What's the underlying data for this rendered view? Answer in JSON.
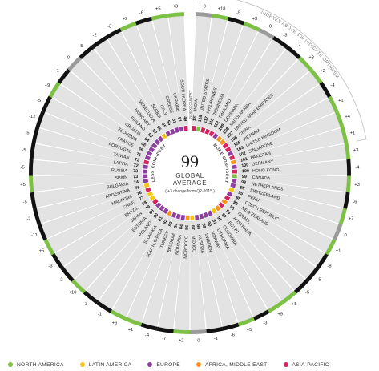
{
  "center": {
    "value": "99",
    "line1": "GLOBAL",
    "line2": "AVERAGE",
    "note": "( +3 change from Q2-2015 )"
  },
  "labels": {
    "less_confident": "LESS CONFIDENT",
    "more_confident": "MORE CONFIDENT",
    "index_header": "INDEX",
    "country_header": "COUNTRY",
    "optimism_note": "INDEXES ABOVE 100 INDICATE OPTIMISM"
  },
  "colors": {
    "north_america": "#7cc143",
    "latin_america": "#f5c518",
    "europe": "#8e3fa0",
    "africa_middle_east": "#f7941d",
    "asia_pacific": "#d6245e",
    "up": "#7cc143",
    "down": "#111111",
    "flat": "#9a9a9a"
  },
  "legend": [
    {
      "label": "NORTH AMERICA",
      "region": "NA"
    },
    {
      "label": "LATIN AMERICA",
      "region": "LA"
    },
    {
      "label": "EUROPE",
      "region": "EU"
    },
    {
      "label": "AFRICA, MIDDLE EAST",
      "region": "AME"
    },
    {
      "label": "ASIA-PACIFIC",
      "region": "AP"
    }
  ],
  "chart_data": {
    "type": "radial-bar",
    "title": "",
    "center_value": 99,
    "rows": [
      {
        "country": "INDIA",
        "index": 131,
        "change": "0",
        "region": "AP"
      },
      {
        "country": "UNITED STATES",
        "index": 118,
        "change": "+18",
        "region": "NA"
      },
      {
        "country": "PHILIPPINES",
        "index": 117,
        "change": "-5",
        "region": "AP"
      },
      {
        "country": "INDONESIA",
        "index": 116,
        "change": "+3",
        "region": "AP"
      },
      {
        "country": "THAILAND",
        "index": 112,
        "change": "0",
        "region": "AP"
      },
      {
        "country": "DENMARK",
        "index": 109,
        "change": "-3",
        "region": "EU"
      },
      {
        "country": "SAUDI ARABIA",
        "index": 108,
        "change": "-4",
        "region": "AME"
      },
      {
        "country": "UNITED ARAB EMIRATES",
        "index": 107,
        "change": "+3",
        "region": "AME"
      },
      {
        "country": "CHINA",
        "index": 106,
        "change": "+2",
        "region": "AP"
      },
      {
        "country": "VIETNAM",
        "index": 105,
        "change": "-4",
        "region": "AP"
      },
      {
        "country": "UNITED KINGDOM",
        "index": 103,
        "change": "+1",
        "region": "EU"
      },
      {
        "country": "SINGAPORE",
        "index": 102,
        "change": "+4",
        "region": "AP"
      },
      {
        "country": "PAKISTAN",
        "index": 101,
        "change": "+1",
        "region": "AME"
      },
      {
        "country": "GERMANY",
        "index": 100,
        "change": "+3",
        "region": "EU"
      },
      {
        "country": "HONG KONG",
        "index": 100,
        "change": "-4",
        "region": "AP"
      },
      {
        "country": "CANADA",
        "index": 99,
        "change": "+3",
        "region": "NA"
      },
      {
        "country": "NETHERLANDS",
        "index": 98,
        "change": "-6",
        "region": "EU"
      },
      {
        "country": "SWITZERLAND",
        "index": 98,
        "change": "+7",
        "region": "EU"
      },
      {
        "country": "PERU",
        "index": 95,
        "change": "0",
        "region": "LA"
      },
      {
        "country": "CZECH REPUBLIC",
        "index": 95,
        "change": "+1",
        "region": "EU"
      },
      {
        "country": "NEW ZEALAND",
        "index": 95,
        "change": "-8",
        "region": "AP"
      },
      {
        "country": "ISRAEL",
        "index": 95,
        "change": "-5",
        "region": "AME"
      },
      {
        "country": "AUSTRALIA",
        "index": 94,
        "change": "-5",
        "region": "AP"
      },
      {
        "country": "EGYPT",
        "index": 92,
        "change": "+5",
        "region": "AME"
      },
      {
        "country": "COLOMBIA",
        "index": 91,
        "change": "+9",
        "region": "LA"
      },
      {
        "country": "LITHUANIA",
        "index": 91,
        "change": "-3",
        "region": "EU"
      },
      {
        "country": "NORWAY",
        "index": 90,
        "change": "+5",
        "region": "EU"
      },
      {
        "country": "SWEDEN",
        "index": 89,
        "change": "-6",
        "region": "EU"
      },
      {
        "country": "AUSTRIA",
        "index": 88,
        "change": "-1",
        "region": "EU"
      },
      {
        "country": "MEXICO",
        "index": 87,
        "change": "0",
        "region": "LA"
      },
      {
        "country": "MOROCCO",
        "index": 86,
        "change": "+2",
        "region": "AME"
      },
      {
        "country": "ROMANIA",
        "index": 84,
        "change": "-7",
        "region": "EU"
      },
      {
        "country": "BELGIUM",
        "index": 84,
        "change": "-4",
        "region": "EU"
      },
      {
        "country": "TURKEY",
        "index": 83,
        "change": "+1",
        "region": "EU"
      },
      {
        "country": "SOUTH AFRICA",
        "index": 82,
        "change": "+6",
        "region": "AME"
      },
      {
        "country": "SLOVAKIA",
        "index": 81,
        "change": "-1",
        "region": "EU"
      },
      {
        "country": "POLAND",
        "index": 80,
        "change": "-3",
        "region": "EU"
      },
      {
        "country": "ESTONIA",
        "index": 80,
        "change": "+10",
        "region": "EU"
      },
      {
        "country": "JAPAN",
        "index": 79,
        "change": "-2",
        "region": "AP"
      },
      {
        "country": "BRAZIL",
        "index": 78,
        "change": "-3",
        "region": "LA"
      },
      {
        "country": "CHILE",
        "index": 77,
        "change": "+5",
        "region": "LA"
      },
      {
        "country": "MALAYSIA",
        "index": 76,
        "change": "-11",
        "region": "AP"
      },
      {
        "country": "ARGENTINA",
        "index": 75,
        "change": "-2",
        "region": "LA"
      },
      {
        "country": "BULGARIA",
        "index": 74,
        "change": "-5",
        "region": "EU"
      },
      {
        "country": "SPAIN",
        "index": 73,
        "change": "+5",
        "region": "EU"
      },
      {
        "country": "RUSSIA",
        "index": 73,
        "change": "-5",
        "region": "EU"
      },
      {
        "country": "LATVIA",
        "index": 72,
        "change": "-5",
        "region": "EU"
      },
      {
        "country": "TAIWAN",
        "index": 72,
        "change": "-5",
        "region": "AP"
      },
      {
        "country": "PORTUGAL",
        "index": 71,
        "change": "-12",
        "region": "EU"
      },
      {
        "country": "FRANCE",
        "index": 66,
        "change": "-5",
        "region": "EU"
      },
      {
        "country": "SLOVENIA",
        "index": 66,
        "change": "+9",
        "region": "EU"
      },
      {
        "country": "CROATIA",
        "index": 64,
        "change": "-1",
        "region": "EU"
      },
      {
        "country": "FINLAND",
        "index": 62,
        "change": "0",
        "region": "EU"
      },
      {
        "country": "HUNGARY",
        "index": 57,
        "change": "-5",
        "region": "EU"
      },
      {
        "country": "VENEZUELA",
        "index": 56,
        "change": "-2",
        "region": "LA"
      },
      {
        "country": "SERBIA",
        "index": 55,
        "change": "-3",
        "region": "EU"
      },
      {
        "country": "ITALY",
        "index": 55,
        "change": "+2",
        "region": "EU"
      },
      {
        "country": "GREECE",
        "index": 51,
        "change": "-6",
        "region": "EU"
      },
      {
        "country": "UKRAINE",
        "index": 51,
        "change": "+5",
        "region": "EU"
      },
      {
        "country": "SOUTH KOREA",
        "index": 49,
        "change": "+3",
        "region": "AP"
      }
    ]
  }
}
